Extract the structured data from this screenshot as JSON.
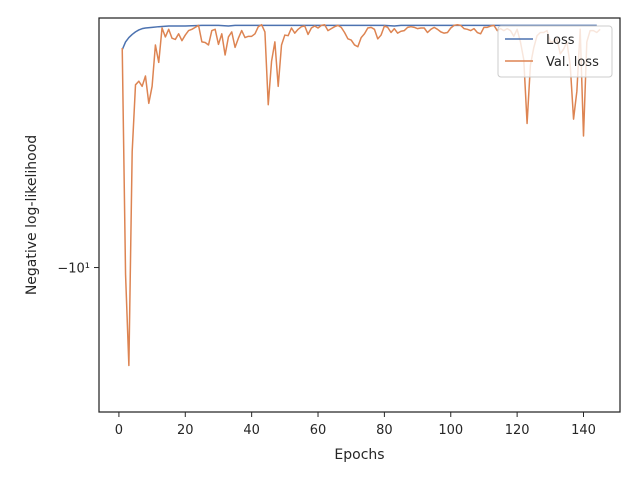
{
  "chart_data": {
    "type": "line",
    "title": "",
    "xlabel": "Epochs",
    "ylabel": "Negative log-likelihood",
    "xlim": [
      -6,
      151
    ],
    "x_ticks": [
      0,
      20,
      40,
      60,
      80,
      100,
      120,
      140
    ],
    "yscale": "symlog",
    "y_ticks": [
      {
        "value": -10,
        "label": "−10¹"
      }
    ],
    "ylim": [
      -18.9,
      -3.33
    ],
    "grid": false,
    "legend": {
      "placement": "top-right"
    },
    "series": [
      {
        "name": "Loss",
        "color": "#4c72b0",
        "points": [
          [
            1,
            -3.83
          ],
          [
            2,
            -3.7
          ],
          [
            3,
            -3.63
          ],
          [
            4,
            -3.58
          ],
          [
            5,
            -3.54
          ],
          [
            6,
            -3.51
          ],
          [
            7,
            -3.49
          ],
          [
            8,
            -3.48
          ],
          [
            10,
            -3.47
          ],
          [
            12,
            -3.46
          ],
          [
            15,
            -3.45
          ],
          [
            20,
            -3.45
          ],
          [
            25,
            -3.44
          ],
          [
            30,
            -3.44
          ],
          [
            33,
            -3.45
          ],
          [
            35,
            -3.44
          ],
          [
            40,
            -3.44
          ],
          [
            45,
            -3.44
          ],
          [
            50,
            -3.44
          ],
          [
            55,
            -3.44
          ],
          [
            60,
            -3.44
          ],
          [
            65,
            -3.44
          ],
          [
            70,
            -3.44
          ],
          [
            75,
            -3.44
          ],
          [
            80,
            -3.44
          ],
          [
            83,
            -3.45
          ],
          [
            85,
            -3.44
          ],
          [
            90,
            -3.44
          ],
          [
            95,
            -3.44
          ],
          [
            100,
            -3.44
          ],
          [
            105,
            -3.44
          ],
          [
            110,
            -3.44
          ],
          [
            115,
            -3.44
          ],
          [
            120,
            -3.44
          ],
          [
            125,
            -3.44
          ],
          [
            130,
            -3.44
          ],
          [
            135,
            -3.44
          ],
          [
            140,
            -3.44
          ],
          [
            144,
            -3.44
          ]
        ]
      },
      {
        "name": "Val. loss",
        "color": "#dd8452",
        "points": [
          [
            1,
            -3.8
          ],
          [
            2,
            -10.3
          ],
          [
            3,
            -15.4
          ],
          [
            4,
            -6.0
          ],
          [
            5,
            -4.47
          ],
          [
            6,
            -4.4
          ],
          [
            7,
            -4.5
          ],
          [
            8,
            -4.3
          ],
          [
            9,
            -4.85
          ],
          [
            10,
            -4.5
          ],
          [
            11,
            -3.75
          ],
          [
            12,
            -4.05
          ],
          [
            13,
            -3.48
          ],
          [
            14,
            -3.62
          ],
          [
            15,
            -3.5
          ],
          [
            16,
            -3.64
          ],
          [
            17,
            -3.66
          ],
          [
            18,
            -3.57
          ],
          [
            19,
            -3.68
          ],
          [
            20,
            -3.59
          ],
          [
            21,
            -3.52
          ],
          [
            22,
            -3.5
          ],
          [
            23,
            -3.47
          ],
          [
            24,
            -3.44
          ],
          [
            25,
            -3.7
          ],
          [
            26,
            -3.71
          ],
          [
            27,
            -3.75
          ],
          [
            28,
            -3.52
          ],
          [
            29,
            -3.5
          ],
          [
            30,
            -3.74
          ],
          [
            31,
            -3.57
          ],
          [
            32,
            -3.92
          ],
          [
            33,
            -3.62
          ],
          [
            34,
            -3.54
          ],
          [
            35,
            -3.79
          ],
          [
            36,
            -3.64
          ],
          [
            37,
            -3.52
          ],
          [
            38,
            -3.63
          ],
          [
            39,
            -3.61
          ],
          [
            40,
            -3.61
          ],
          [
            41,
            -3.57
          ],
          [
            42,
            -3.46
          ],
          [
            43,
            -3.43
          ],
          [
            44,
            -3.54
          ],
          [
            45,
            -4.88
          ],
          [
            46,
            -4.03
          ],
          [
            47,
            -3.7
          ],
          [
            48,
            -4.5
          ],
          [
            49,
            -3.75
          ],
          [
            50,
            -3.59
          ],
          [
            51,
            -3.6
          ],
          [
            52,
            -3.48
          ],
          [
            53,
            -3.56
          ],
          [
            54,
            -3.5
          ],
          [
            55,
            -3.46
          ],
          [
            56,
            -3.45
          ],
          [
            57,
            -3.58
          ],
          [
            58,
            -3.48
          ],
          [
            59,
            -3.45
          ],
          [
            60,
            -3.48
          ],
          [
            61,
            -3.44
          ],
          [
            62,
            -3.43
          ],
          [
            63,
            -3.52
          ],
          [
            64,
            -3.49
          ],
          [
            65,
            -3.46
          ],
          [
            66,
            -3.44
          ],
          [
            67,
            -3.47
          ],
          [
            68,
            -3.55
          ],
          [
            69,
            -3.65
          ],
          [
            70,
            -3.67
          ],
          [
            71,
            -3.75
          ],
          [
            72,
            -3.78
          ],
          [
            73,
            -3.63
          ],
          [
            74,
            -3.57
          ],
          [
            75,
            -3.48
          ],
          [
            76,
            -3.47
          ],
          [
            77,
            -3.5
          ],
          [
            78,
            -3.65
          ],
          [
            79,
            -3.59
          ],
          [
            80,
            -3.45
          ],
          [
            81,
            -3.47
          ],
          [
            82,
            -3.55
          ],
          [
            83,
            -3.49
          ],
          [
            84,
            -3.56
          ],
          [
            85,
            -3.53
          ],
          [
            86,
            -3.52
          ],
          [
            87,
            -3.47
          ],
          [
            88,
            -3.46
          ],
          [
            89,
            -3.47
          ],
          [
            90,
            -3.49
          ],
          [
            91,
            -3.48
          ],
          [
            92,
            -3.48
          ],
          [
            93,
            -3.55
          ],
          [
            94,
            -3.5
          ],
          [
            95,
            -3.47
          ],
          [
            96,
            -3.5
          ],
          [
            97,
            -3.54
          ],
          [
            98,
            -3.56
          ],
          [
            99,
            -3.55
          ],
          [
            100,
            -3.48
          ],
          [
            101,
            -3.44
          ],
          [
            102,
            -3.43
          ],
          [
            103,
            -3.44
          ],
          [
            104,
            -3.49
          ],
          [
            105,
            -3.5
          ],
          [
            106,
            -3.52
          ],
          [
            107,
            -3.49
          ],
          [
            108,
            -3.55
          ],
          [
            109,
            -3.57
          ],
          [
            110,
            -3.47
          ],
          [
            111,
            -3.47
          ],
          [
            112,
            -3.45
          ],
          [
            113,
            -3.44
          ],
          [
            114,
            -3.52
          ],
          [
            115,
            -3.49
          ],
          [
            116,
            -3.52
          ],
          [
            117,
            -3.49
          ],
          [
            118,
            -3.52
          ],
          [
            119,
            -3.61
          ],
          [
            120,
            -3.5
          ],
          [
            121,
            -3.7
          ],
          [
            122,
            -4.0
          ],
          [
            123,
            -5.3
          ],
          [
            124,
            -4.1
          ],
          [
            125,
            -3.8
          ],
          [
            126,
            -3.6
          ],
          [
            127,
            -3.55
          ],
          [
            128,
            -3.55
          ],
          [
            129,
            -3.52
          ],
          [
            130,
            -3.7
          ],
          [
            131,
            -3.7
          ],
          [
            132,
            -3.65
          ],
          [
            133,
            -3.9
          ],
          [
            134,
            -3.82
          ],
          [
            135,
            -3.7
          ],
          [
            136,
            -4.1
          ],
          [
            137,
            -5.2
          ],
          [
            138,
            -4.6
          ],
          [
            139,
            -3.5
          ],
          [
            140,
            -5.6
          ],
          [
            141,
            -3.7
          ],
          [
            142,
            -3.52
          ],
          [
            143,
            -3.52
          ],
          [
            144,
            -3.55
          ],
          [
            145,
            -3.5
          ]
        ]
      }
    ]
  }
}
